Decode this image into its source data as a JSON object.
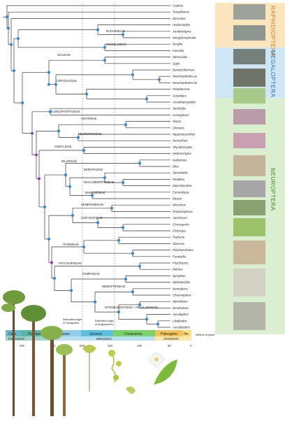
{
  "taxa": [
    "Cephus",
    "Tenephenus",
    "Dersasiar",
    "Hochocephis",
    "Xanthocligma",
    "Mongolocephalia",
    "Nerghe",
    "Inocellia",
    "Stenosialis",
    "Sialis",
    "Dysmicohermes",
    "Neochauliodes pu",
    "Neochauliodes bo",
    "Protohermes",
    "Corydalus",
    "Acanthacorydalis",
    "Semidalis",
    "Coniopteryx",
    "Sisyra",
    "Climacia",
    "Nipponeurorthus",
    "Nevrorthus",
    "Thyridosmylus",
    "Heterosmylus",
    "Nallachius",
    "Dilar",
    "Stenobiella",
    "Podallea",
    "Mucroberotha",
    "Eumantispa",
    "Ditaxis",
    "Micromus",
    "Drepanepteryx",
    "Apochrysa",
    "Chrysoperla",
    "Chrysopa",
    "Rapisma",
    "Oberosa",
    "Polystoechotes",
    "Fontecilla",
    "Psychopsis",
    "Balmes",
    "Nymphes",
    "Myiodactylus",
    "Nemoptera",
    "Chasmoptera",
    "Myrmeleon",
    "Dendroleon",
    "Ascalaphus",
    "Libelloides",
    "Ascalohybris"
  ],
  "families": [
    "RAPHIDIIDAE",
    "INOCELLIIDAE",
    "SIALIDAE",
    "CORYDALIDAE",
    "CONIOPTERYGIDAE",
    "SISYRIDAE",
    "NEVRORTHIDAE",
    "OSMYLIDAE",
    "DILARIDAE",
    "BEROTHIDAE",
    "RHACHIBEROTHIDAE",
    "MANTISPIDAE",
    "HEMEROBIIDAE",
    "CHRYSOPIDAE",
    "ITHONIDAE",
    "PSYCHOPSIDAE",
    "NYMPHIDAE",
    "NEMOPTERIDAE",
    "MYRMELEONTIDAE + ASCALAPHIDAE"
  ],
  "orders": [
    "RAPHIDIOPTERA",
    "MEGALOPTERA",
    "NEUROPTERA"
  ],
  "periods": [
    "Carb.",
    "Permian",
    "Triassic",
    "Jurassic",
    "Cretaceous",
    "Paleogene",
    "Ne."
  ],
  "eras": [
    "PALEOZOIC",
    "MESOZOIC",
    "CENOZOIC"
  ],
  "ticks": [
    "300",
    "250",
    "200",
    "150",
    "100",
    "50",
    "0"
  ],
  "axis_label": "Millions of years",
  "notes": {
    "ginkgo": [
      "Estimated origin",
      "of Ginkgoales"
    ],
    "angio": [
      "Estimated origin",
      "of Angiosperms"
    ]
  },
  "colors": {
    "raphidioptera": "#fbe5bf",
    "megaloptera": "#cfe6f4",
    "neuroptera": "#d9efcf",
    "node": "#2e86d6",
    "node_purple": "#8a3fb8"
  }
}
